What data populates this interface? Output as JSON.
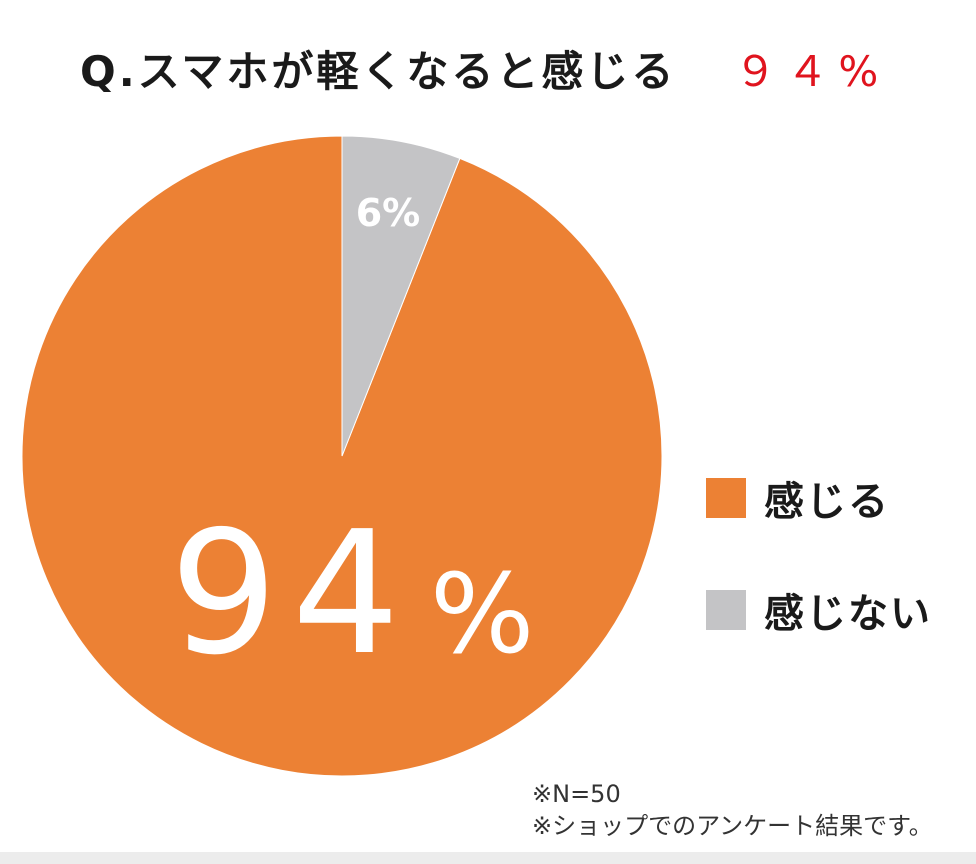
{
  "chart_data": {
    "type": "pie",
    "title": "Q.スマホが軽くなると感じる",
    "title_value": "９４%",
    "slices": [
      {
        "label": "感じる",
        "value": 94,
        "label_text": "94%",
        "color": "#ec8134"
      },
      {
        "label": "感じない",
        "value": 6,
        "label_text": "6%",
        "color": "#c4c4c6"
      }
    ],
    "legend_position": "right",
    "footnote": [
      "※N=50",
      "※ショップでのアンケート結果です。"
    ]
  },
  "colors": {
    "title_value": "#e0141e",
    "label_text": "#ffffff",
    "background": "#ffffff"
  }
}
